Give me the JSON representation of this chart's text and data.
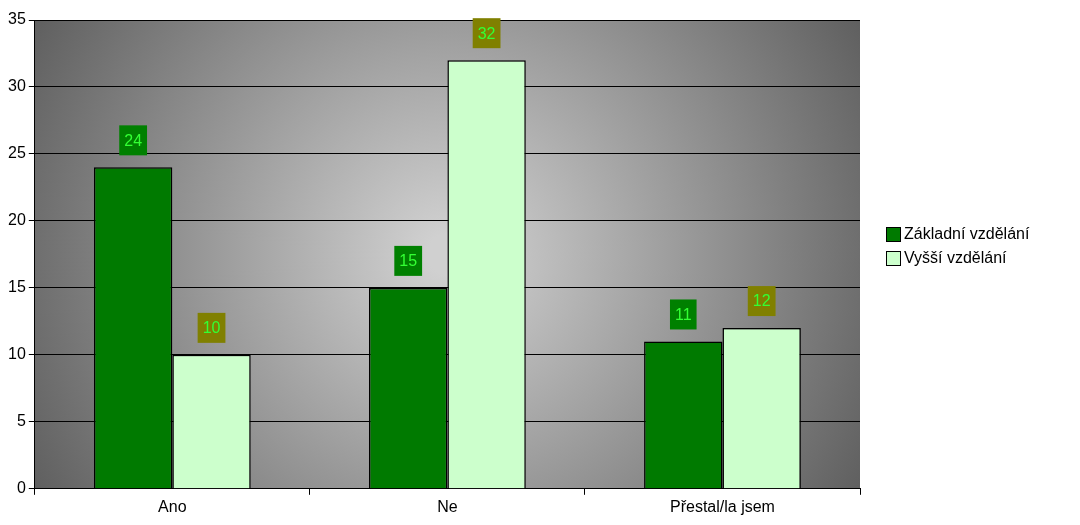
{
  "chart_data": {
    "type": "bar",
    "categories": [
      "Ano",
      "Ne",
      "Přestal/la jsem"
    ],
    "series": [
      {
        "name": "Základní vzdělání",
        "color": "#007a00",
        "values": [
          24,
          15,
          11
        ]
      },
      {
        "name": "Vyšší vzdělání",
        "color": "#ccffcc",
        "values": [
          10,
          32,
          12
        ]
      }
    ],
    "ylim": [
      0,
      35
    ],
    "yticks": [
      0,
      5,
      10,
      15,
      20,
      25,
      30,
      35
    ],
    "grid": "y",
    "legend": "right",
    "data_labels": true
  }
}
